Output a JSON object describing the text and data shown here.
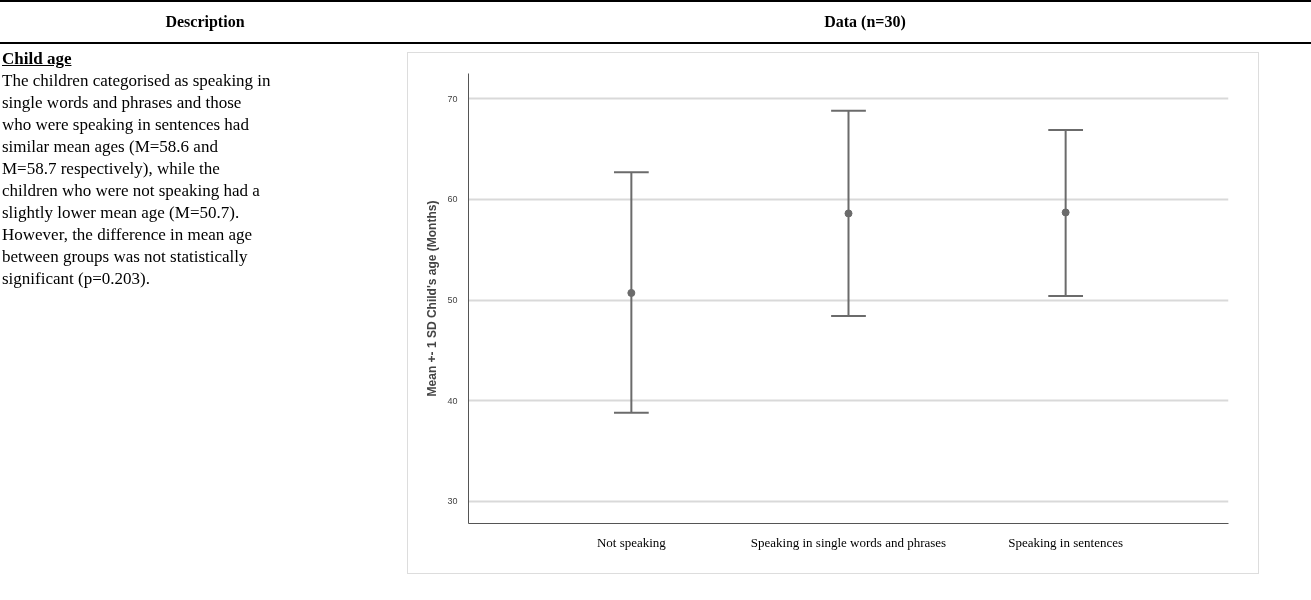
{
  "chart_data": {
    "type": "scatter",
    "ylabel": "Mean +- 1 SD Child's age (Months)",
    "categories": [
      "Not speaking",
      "Speaking in single words and phrases",
      "Speaking in sentences"
    ],
    "values": [
      50.7,
      58.6,
      58.7
    ],
    "errors": [
      [
        38.8,
        62.7
      ],
      [
        48.4,
        68.8
      ],
      [
        50.4,
        66.9
      ]
    ],
    "color": "#6b6b6b",
    "marker": "circle",
    "ylim": [
      27.8,
      72.5
    ],
    "yticks": [
      30,
      40,
      50,
      60,
      70
    ],
    "grid": "y",
    "annotations": [
      "Description",
      "Data (n=30)",
      "Child age",
      "The children categorised as speaking in single words and phrases and those who were speaking in sentences had similar mean ages (M=58.6 and M=58.7 respectively), while the children who were not speaking had a slightly lower mean age (M=50.7). However, the difference in mean age between groups was not statistically significant (p=0.203)."
    ]
  }
}
